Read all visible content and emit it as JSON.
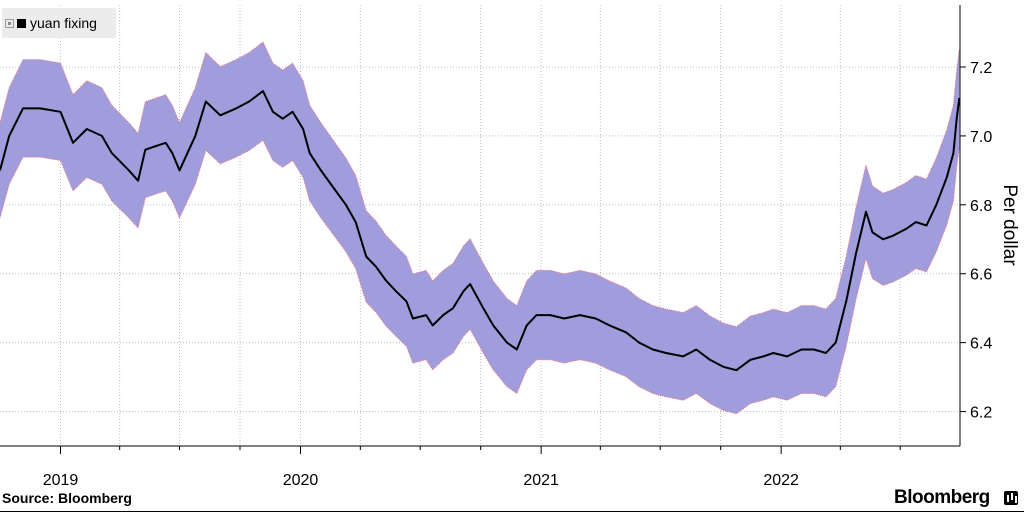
{
  "legend": {
    "label": "yuan fixing"
  },
  "source": "Source: Bloomberg",
  "brand": "Bloomberg",
  "colors": {
    "band": "#9f9ddc",
    "band_edge": "#e6738a",
    "line": "#000000",
    "grid": "#bdbdbd"
  },
  "chart_data": {
    "type": "line",
    "xlabel": "",
    "ylabel": "Per dollar",
    "xtick_labels": [
      "2019",
      "2020",
      "2021",
      "2022"
    ],
    "ytick_labels": [
      "6.2",
      "6.4",
      "6.6",
      "6.8",
      "7.0",
      "7.2"
    ],
    "yticks": [
      6.2,
      6.4,
      6.6,
      6.8,
      7.0,
      7.2
    ],
    "xlim": [
      "2018-10-01",
      "2022-09-30"
    ],
    "ylim": [
      6.1,
      7.38
    ],
    "band_pct": 2,
    "grid": true,
    "y_axis_position": "right",
    "series": [
      {
        "name": "yuan fixing",
        "points": [
          [
            "2018-10-01",
            6.9
          ],
          [
            "2018-10-15",
            7.0
          ],
          [
            "2018-11-05",
            7.08
          ],
          [
            "2018-12-01",
            7.08
          ],
          [
            "2019-01-01",
            7.07
          ],
          [
            "2019-01-20",
            6.98
          ],
          [
            "2019-02-10",
            7.02
          ],
          [
            "2019-03-05",
            7.0
          ],
          [
            "2019-03-20",
            6.95
          ],
          [
            "2019-04-15",
            6.9
          ],
          [
            "2019-04-29",
            6.87
          ],
          [
            "2019-05-10",
            6.96
          ],
          [
            "2019-05-25",
            6.97
          ],
          [
            "2019-06-10",
            6.98
          ],
          [
            "2019-06-20",
            6.95
          ],
          [
            "2019-07-01",
            6.9
          ],
          [
            "2019-07-25",
            7.0
          ],
          [
            "2019-08-10",
            7.1
          ],
          [
            "2019-09-01",
            7.06
          ],
          [
            "2019-09-25",
            7.08
          ],
          [
            "2019-10-15",
            7.1
          ],
          [
            "2019-11-05",
            7.13
          ],
          [
            "2019-11-20",
            7.07
          ],
          [
            "2019-12-05",
            7.05
          ],
          [
            "2019-12-20",
            7.07
          ],
          [
            "2020-01-05",
            7.02
          ],
          [
            "2020-01-15",
            6.95
          ],
          [
            "2020-02-01",
            6.9
          ],
          [
            "2020-02-20",
            6.85
          ],
          [
            "2020-03-10",
            6.8
          ],
          [
            "2020-03-25",
            6.75
          ],
          [
            "2020-04-10",
            6.65
          ],
          [
            "2020-04-25",
            6.62
          ],
          [
            "2020-05-10",
            6.58
          ],
          [
            "2020-05-25",
            6.55
          ],
          [
            "2020-06-10",
            6.52
          ],
          [
            "2020-06-20",
            6.47
          ],
          [
            "2020-07-10",
            6.48
          ],
          [
            "2020-07-20",
            6.45
          ],
          [
            "2020-08-05",
            6.48
          ],
          [
            "2020-08-20",
            6.5
          ],
          [
            "2020-09-05",
            6.55
          ],
          [
            "2020-09-15",
            6.57
          ],
          [
            "2020-10-05",
            6.5
          ],
          [
            "2020-10-20",
            6.45
          ],
          [
            "2020-11-10",
            6.4
          ],
          [
            "2020-11-25",
            6.38
          ],
          [
            "2020-12-10",
            6.45
          ],
          [
            "2020-12-25",
            6.48
          ],
          [
            "2021-01-15",
            6.48
          ],
          [
            "2021-02-05",
            6.47
          ],
          [
            "2021-03-01",
            6.48
          ],
          [
            "2021-03-25",
            6.47
          ],
          [
            "2021-04-15",
            6.45
          ],
          [
            "2021-05-10",
            6.43
          ],
          [
            "2021-05-30",
            6.4
          ],
          [
            "2021-06-20",
            6.38
          ],
          [
            "2021-07-10",
            6.37
          ],
          [
            "2021-08-05",
            6.36
          ],
          [
            "2021-08-25",
            6.38
          ],
          [
            "2021-09-15",
            6.35
          ],
          [
            "2021-10-05",
            6.33
          ],
          [
            "2021-10-25",
            6.32
          ],
          [
            "2021-11-15",
            6.35
          ],
          [
            "2021-12-05",
            6.36
          ],
          [
            "2021-12-20",
            6.37
          ],
          [
            "2022-01-10",
            6.36
          ],
          [
            "2022-02-01",
            6.38
          ],
          [
            "2022-02-20",
            6.38
          ],
          [
            "2022-03-10",
            6.37
          ],
          [
            "2022-03-25",
            6.4
          ],
          [
            "2022-04-10",
            6.52
          ],
          [
            "2022-04-25",
            6.66
          ],
          [
            "2022-05-10",
            6.78
          ],
          [
            "2022-05-20",
            6.72
          ],
          [
            "2022-06-05",
            6.7
          ],
          [
            "2022-06-20",
            6.71
          ],
          [
            "2022-07-10",
            6.73
          ],
          [
            "2022-07-25",
            6.75
          ],
          [
            "2022-08-10",
            6.74
          ],
          [
            "2022-08-25",
            6.8
          ],
          [
            "2022-09-10",
            6.88
          ],
          [
            "2022-09-20",
            6.95
          ],
          [
            "2022-09-25",
            7.05
          ],
          [
            "2022-09-29",
            7.11
          ]
        ]
      }
    ]
  }
}
